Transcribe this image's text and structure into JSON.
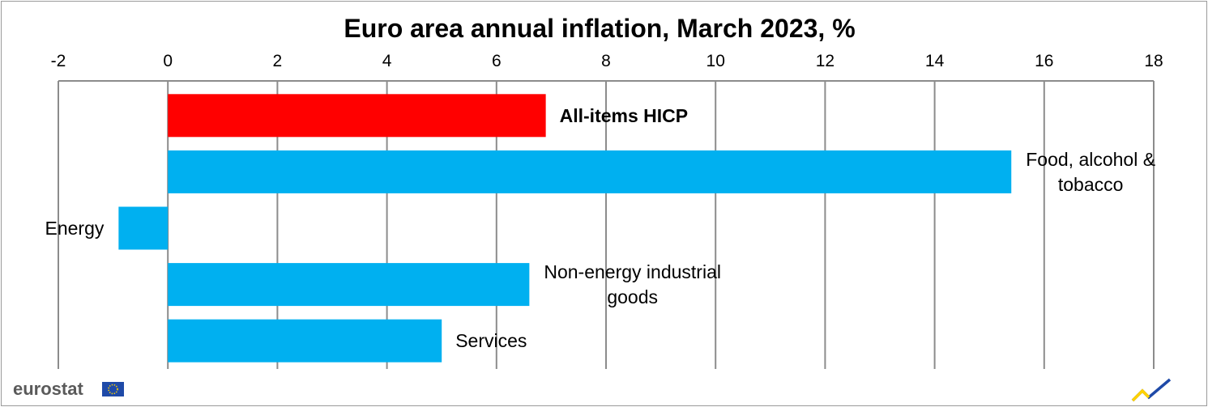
{
  "brand": {
    "logo_text": "eurostat"
  },
  "chart_data": {
    "type": "bar",
    "orientation": "horizontal",
    "title": "Euro area annual inflation, March 2023, %",
    "xlabel": "",
    "ylabel": "",
    "xlim": [
      -2,
      18
    ],
    "xticks": [
      -2,
      0,
      2,
      4,
      6,
      8,
      10,
      12,
      14,
      16,
      18
    ],
    "grid": true,
    "categories": [
      {
        "label_lines": [
          "All-items HICP"
        ],
        "value": 6.9,
        "color": "#ff0000",
        "bold": true
      },
      {
        "label_lines": [
          "Food, alcohol &",
          "tobacco"
        ],
        "value": 15.4,
        "color": "#00b0f0",
        "bold": false
      },
      {
        "label_lines": [
          "Energy"
        ],
        "value": -0.9,
        "color": "#00b0f0",
        "bold": false
      },
      {
        "label_lines": [
          "Non-energy industrial",
          "goods"
        ],
        "value": 6.6,
        "color": "#00b0f0",
        "bold": false
      },
      {
        "label_lines": [
          "Services"
        ],
        "value": 5.0,
        "color": "#00b0f0",
        "bold": false
      }
    ]
  }
}
